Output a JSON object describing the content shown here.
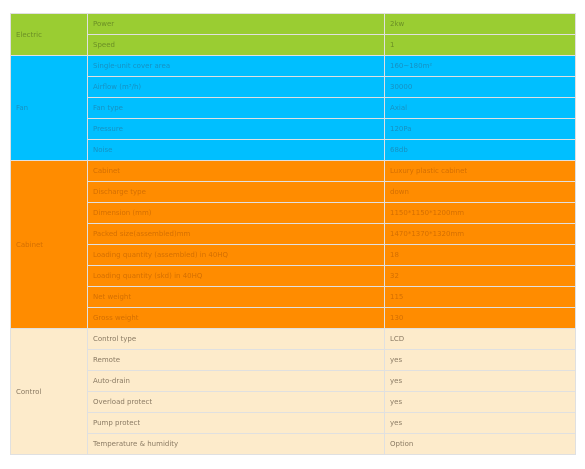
{
  "spec_table": {
    "groups": [
      {
        "name": "Electric",
        "color": "#9ACD32",
        "rows": [
          {
            "label": "Power",
            "value": "2kw"
          },
          {
            "label": "Speed",
            "value": "1"
          }
        ]
      },
      {
        "name": "Fan",
        "color": "#00BFFF",
        "rows": [
          {
            "label": "Single-unit cover area",
            "value": "160~180m²"
          },
          {
            "label": "Airflow (m³/h)",
            "value": "30000"
          },
          {
            "label": "Fan type",
            "value": "Axial"
          },
          {
            "label": "Pressure",
            "value": "120Pa"
          },
          {
            "label": "Noise",
            "value": "68db"
          }
        ]
      },
      {
        "name": "Cabinet",
        "color": "#FF8C00",
        "rows": [
          {
            "label": "Cabinet",
            "value": "Luxury plastic cabinet"
          },
          {
            "label": "Discharge type",
            "value": "down"
          },
          {
            "label": "Dimension (mm)",
            "value": "1150*1150*1200mm"
          },
          {
            "label": "Packed size(assembled)mm",
            "value": "1470*1370*1320mm"
          },
          {
            "label": "Loading quantity (assembled) in 40HQ",
            "value": "18"
          },
          {
            "label": "Loading quantity (skd) in 40HQ",
            "value": "32"
          },
          {
            "label": "Net weight",
            "value": "115"
          },
          {
            "label": "Gross weight",
            "value": "130"
          }
        ]
      },
      {
        "name": "Control",
        "color": "#FDEBCB",
        "rows": [
          {
            "label": "Control type",
            "value": "LCD"
          },
          {
            "label": "Remote",
            "value": "yes"
          },
          {
            "label": "Auto-drain",
            "value": "yes"
          },
          {
            "label": "Overload protect",
            "value": "yes"
          },
          {
            "label": "Pump protect",
            "value": "yes"
          },
          {
            "label": "Temperature & humidity",
            "value": "Option"
          }
        ]
      }
    ]
  }
}
